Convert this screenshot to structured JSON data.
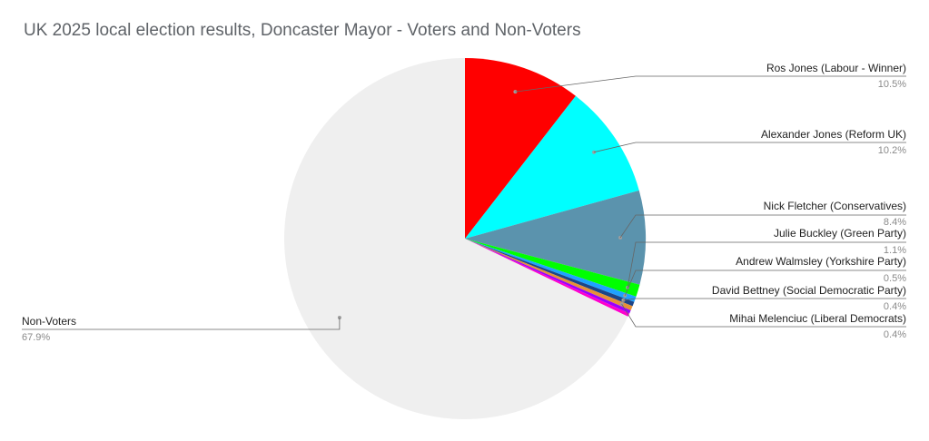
{
  "chart_data": {
    "type": "pie",
    "title": "UK 2025 local election results, Doncaster Mayor - Voters and Non-Voters",
    "slices": [
      {
        "label": "Ros Jones (Labour - Winner)",
        "value": 10.5,
        "display": "10.5%",
        "color": "#ff0000"
      },
      {
        "label": "Alexander Jones (Reform UK)",
        "value": 10.2,
        "display": "10.2%",
        "color": "#00ffff"
      },
      {
        "label": "Nick Fletcher (Conservatives)",
        "value": 8.4,
        "display": "8.4%",
        "color": "#5b93ad"
      },
      {
        "label": "Julie Buckley (Green Party)",
        "value": 1.1,
        "display": "1.1%",
        "color": "#00ff00"
      },
      {
        "label": "Andrew Walmsley (Yorkshire Party)",
        "value": 0.5,
        "display": "0.5%",
        "color": "#1fa2ff"
      },
      {
        "label": "David Bettney (Social Democratic Party)",
        "value": 0.4,
        "display": "0.4%",
        "color": "#1c4587"
      },
      {
        "label": "Mihai Melenciuc (Liberal Democrats)",
        "value": 0.4,
        "display": "0.4%",
        "color": "#e69138"
      },
      {
        "label": "",
        "value": 0.3,
        "display": "",
        "color": "#9900ff"
      },
      {
        "label": "",
        "value": 0.3,
        "display": "",
        "color": "#ff00cc"
      },
      {
        "label": "Non-Voters",
        "value": 67.9,
        "display": "67.9%",
        "color": "#efefef"
      }
    ],
    "legend": "none (callout labels)"
  }
}
